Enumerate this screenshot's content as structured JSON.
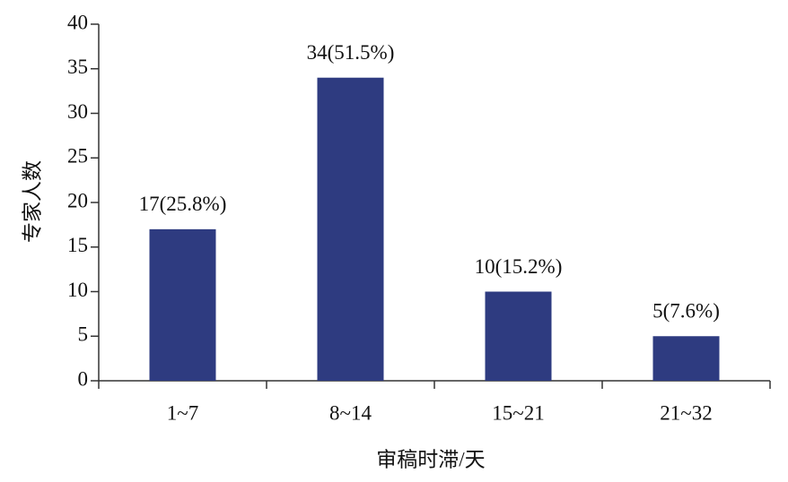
{
  "chart_data": {
    "type": "bar",
    "x_label": "审稿时滞/天",
    "y_label": "专家人数",
    "categories": [
      "1~7",
      "8~14",
      "15~21",
      "21~32"
    ],
    "values": [
      17,
      34,
      10,
      5
    ],
    "value_labels": [
      "17(25.8%)",
      "34(51.5%)",
      "10(15.2%)",
      "5(7.6%)"
    ],
    "color": "#2e3b80",
    "ylim": [
      0,
      40
    ],
    "yticks": [
      0,
      5,
      10,
      15,
      20,
      25,
      30,
      35,
      40
    ],
    "grid": false
  }
}
